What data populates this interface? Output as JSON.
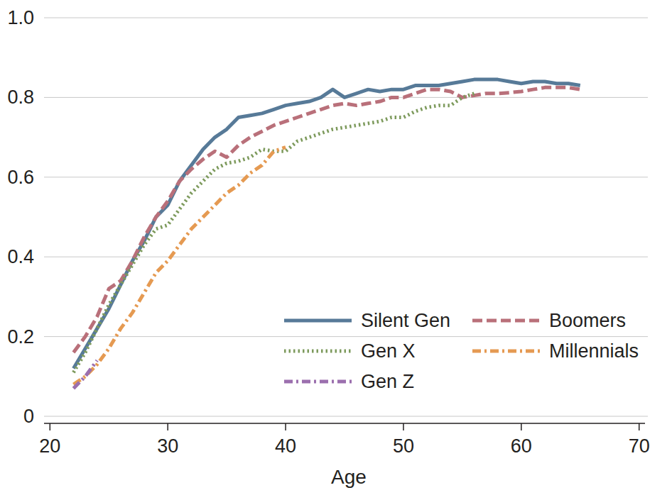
{
  "chart_data": {
    "type": "line",
    "x_label": "Age",
    "x": [
      22,
      23,
      24,
      25,
      26,
      27,
      28,
      29,
      30,
      31,
      32,
      33,
      34,
      35,
      36,
      37,
      38,
      39,
      40,
      41,
      42,
      43,
      44,
      45,
      46,
      47,
      48,
      49,
      50,
      51,
      52,
      53,
      54,
      55,
      56,
      57,
      58,
      59,
      60,
      61,
      62,
      63,
      64,
      65
    ],
    "series": [
      {
        "name": "Silent Gen",
        "color": "#577a98",
        "line_style": "solid",
        "values": [
          0.12,
          0.17,
          0.22,
          0.27,
          0.33,
          0.39,
          0.44,
          0.5,
          0.53,
          0.59,
          0.63,
          0.67,
          0.7,
          0.72,
          0.75,
          0.755,
          0.76,
          0.77,
          0.78,
          0.785,
          0.79,
          0.8,
          0.82,
          0.8,
          0.81,
          0.82,
          0.815,
          0.82,
          0.82,
          0.83,
          0.83,
          0.83,
          0.835,
          0.84,
          0.845,
          0.845,
          0.845,
          0.84,
          0.835,
          0.84,
          0.84,
          0.835,
          0.835,
          0.83
        ]
      },
      {
        "name": "Boomers",
        "color": "#b9707a",
        "line_style": "dashed",
        "values": [
          0.16,
          0.2,
          0.25,
          0.32,
          0.34,
          0.39,
          0.45,
          0.5,
          0.54,
          0.59,
          0.62,
          0.645,
          0.665,
          0.65,
          0.68,
          0.7,
          0.715,
          0.73,
          0.74,
          0.75,
          0.76,
          0.77,
          0.78,
          0.785,
          0.78,
          0.785,
          0.79,
          0.8,
          0.8,
          0.81,
          0.82,
          0.82,
          0.815,
          0.8,
          0.805,
          0.81,
          0.81,
          0.812,
          0.815,
          0.82,
          0.825,
          0.825,
          0.825,
          0.82
        ]
      },
      {
        "name": "Gen X",
        "color": "#7d9a5c",
        "line_style": "dotted",
        "values": [
          0.11,
          0.16,
          0.22,
          0.28,
          0.33,
          0.38,
          0.43,
          0.47,
          0.48,
          0.52,
          0.56,
          0.59,
          0.62,
          0.635,
          0.64,
          0.65,
          0.67,
          0.665,
          0.665,
          0.69,
          0.7,
          0.71,
          0.72,
          0.725,
          0.73,
          0.735,
          0.74,
          0.75,
          0.75,
          0.765,
          0.775,
          0.78,
          0.78,
          0.8,
          0.81,
          null,
          null,
          null,
          null,
          null,
          null,
          null,
          null,
          null
        ]
      },
      {
        "name": "Millennials",
        "color": "#e59a52",
        "line_style": "dashdot",
        "values": [
          0.08,
          0.1,
          0.13,
          0.17,
          0.22,
          0.26,
          0.31,
          0.36,
          0.39,
          0.43,
          0.47,
          0.5,
          0.53,
          0.56,
          0.58,
          0.61,
          0.63,
          0.665,
          0.675,
          null,
          null,
          null,
          null,
          null,
          null,
          null,
          null,
          null,
          null,
          null,
          null,
          null,
          null,
          null,
          null,
          null,
          null,
          null,
          null,
          null,
          null,
          null,
          null,
          null
        ]
      },
      {
        "name": "Gen Z",
        "color": "#9b6fae",
        "line_style": "dashdot",
        "values": [
          0.07,
          0.1,
          0.14,
          null,
          null,
          null,
          null,
          null,
          null,
          null,
          null,
          null,
          null,
          null,
          null,
          null,
          null,
          null,
          null,
          null,
          null,
          null,
          null,
          null,
          null,
          null,
          null,
          null,
          null,
          null,
          null,
          null,
          null,
          null,
          null,
          null,
          null,
          null,
          null,
          null,
          null,
          null,
          null,
          null
        ]
      }
    ],
    "xlim": [
      19.5,
      70.5
    ],
    "xticks": [
      20,
      30,
      40,
      50,
      60,
      70
    ],
    "ylim": [
      0,
      1
    ],
    "yticks": [
      0,
      0.2,
      0.4,
      0.6,
      0.8,
      {
        "value": 1,
        "label": "1.0"
      }
    ],
    "grid": true,
    "legend": "lower right"
  }
}
